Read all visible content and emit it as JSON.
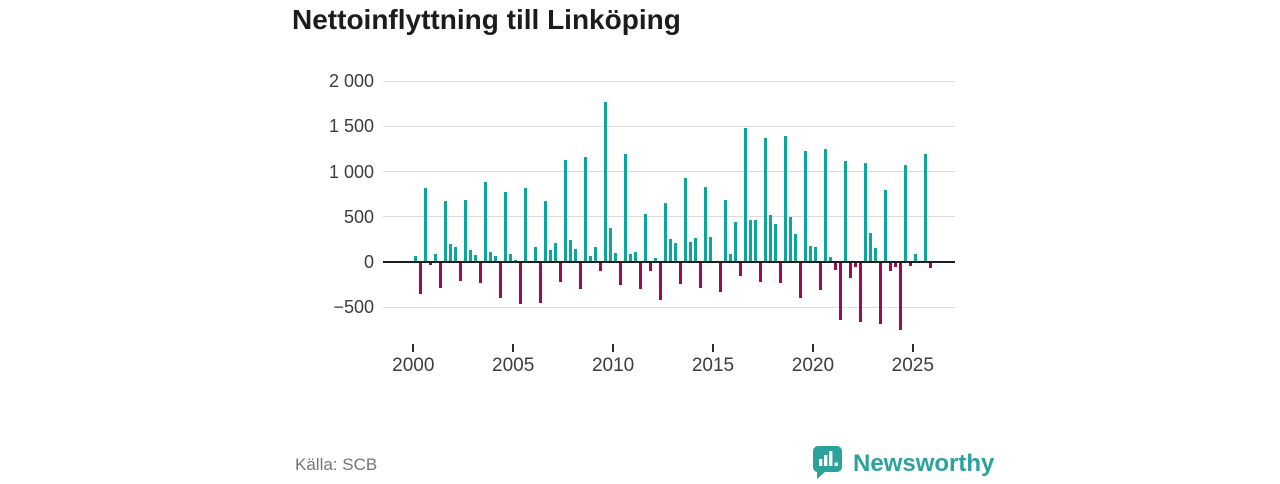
{
  "footer": {
    "source": "Källa: SCB",
    "brand": "Newsworthy",
    "brand_color": "#2ba39c"
  },
  "chart_data": {
    "type": "bar",
    "title": "Nettoinflyttning till Linköping",
    "subtitle": "",
    "xlabel": "",
    "ylabel": "",
    "unit": "persons per quarter (net migration)",
    "legend": "none",
    "grid": "horizontal",
    "positive_color": "#0da69b",
    "negative_color": "#a4094d",
    "ylim": [
      -885,
      2124
    ],
    "y_ticks": [
      {
        "value": 2000,
        "label": "2 000"
      },
      {
        "value": 1500,
        "label": "1 500"
      },
      {
        "value": 1000,
        "label": "1 000"
      },
      {
        "value": 500,
        "label": "500"
      },
      {
        "value": 0,
        "label": "0"
      },
      {
        "value": -500,
        "label": "−500"
      }
    ],
    "x_tick_labels": [
      "2000",
      "2005",
      "2010",
      "2015",
      "2020",
      "2025"
    ],
    "start_period": "2000 Q1",
    "end_period": "2025 Q4",
    "periods_per_year": 4,
    "values": [
      70,
      -350,
      820,
      -30,
      90,
      -290,
      670,
      200,
      170,
      -210,
      690,
      135,
      75,
      -230,
      890,
      110,
      70,
      -400,
      770,
      90,
      20,
      -470,
      820,
      10,
      170,
      -455,
      680,
      135,
      210,
      -225,
      1130,
      245,
      140,
      -300,
      1160,
      70,
      165,
      -100,
      1770,
      375,
      100,
      -250,
      1190,
      90,
      115,
      -295,
      530,
      -100,
      45,
      -415,
      655,
      250,
      210,
      -240,
      930,
      225,
      260,
      -285,
      830,
      280,
      15,
      -330,
      685,
      90,
      445,
      -155,
      1480,
      465,
      465,
      -220,
      1375,
      525,
      415,
      -230,
      1395,
      500,
      310,
      -395,
      1230,
      180,
      170,
      -305,
      1250,
      50,
      -85,
      -640,
      1115,
      -180,
      -60,
      -665,
      1090,
      325,
      150,
      -690,
      795,
      -100,
      -50,
      -750,
      1075,
      -40,
      90,
      10,
      1195,
      -65
    ]
  }
}
